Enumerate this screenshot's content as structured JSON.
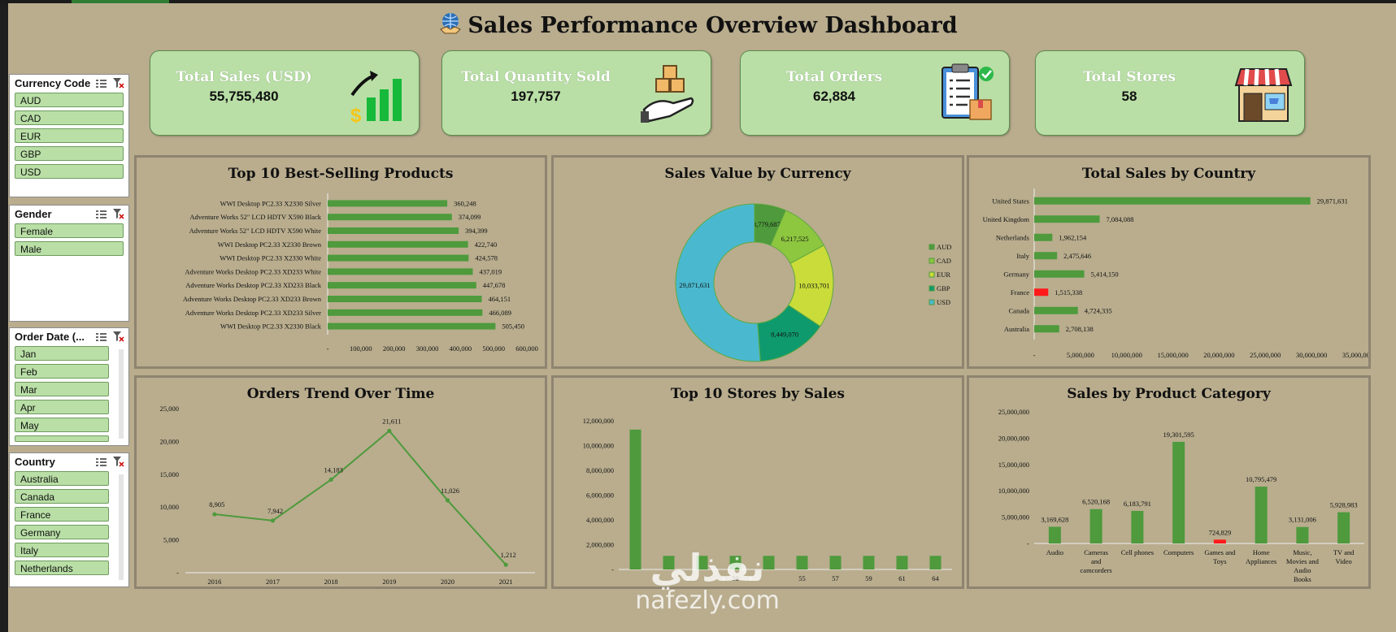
{
  "dashboard": {
    "title": "Sales Performance Overview Dashboard"
  },
  "kpis": [
    {
      "label": "Total Sales (USD)",
      "value": "55,755,480",
      "icon": "sales-growth-icon"
    },
    {
      "label": "Total Quantity Sold",
      "value": "197,757",
      "icon": "boxes-hand-icon"
    },
    {
      "label": "Total Orders",
      "value": "62,884",
      "icon": "order-clipboard-icon"
    },
    {
      "label": "Total Stores",
      "value": "58",
      "icon": "storefront-icon"
    }
  ],
  "slicers": {
    "currency": {
      "title": "Currency Code",
      "items": [
        "AUD",
        "CAD",
        "EUR",
        "GBP",
        "USD"
      ]
    },
    "gender": {
      "title": "Gender",
      "items": [
        "Female",
        "Male"
      ]
    },
    "order_date": {
      "title": "Order Date (...",
      "items": [
        "Jan",
        "Feb",
        "Mar",
        "Apr",
        "May"
      ]
    },
    "country": {
      "title": "Country",
      "items": [
        "Australia",
        "Canada",
        "France",
        "Germany",
        "Italy",
        "Netherlands"
      ]
    }
  },
  "colors": {
    "bar": "#4e9a3c",
    "highlight": "#ff1a1a",
    "kpi_bg": "#b9dfa6",
    "page_bg": "#b9ad8e"
  },
  "watermark": {
    "arabic": "نفذلي",
    "latin": "nafezly.com"
  },
  "chart_data": [
    {
      "id": "top-products",
      "type": "bar",
      "orientation": "horizontal",
      "title": "Top 10 Best-Selling Products",
      "categories": [
        "WWI Desktop PC2.33 X2330 Silver",
        "Adventure Works 52\" LCD HDTV X590 Black",
        "Adventure Works 52\" LCD HDTV X590 White",
        "WWI Desktop PC2.33 X2330 Brown",
        "WWI Desktop PC2.33 X2330 White",
        "Adventure Works Desktop PC2.33 XD233 White",
        "Adventure Works Desktop PC2.33 XD233 Black",
        "Adventure Works Desktop PC2.33 XD233 Brown",
        "Adventure Works Desktop PC2.33 XD233 Silver",
        "WWI Desktop PC2.33 X2330 Black"
      ],
      "values": [
        360248,
        374099,
        394399,
        422740,
        424578,
        437019,
        447678,
        464151,
        466089,
        505450
      ],
      "value_labels": [
        "360,248",
        "374,099",
        "394,399",
        "422,740",
        "424,578",
        "437,019",
        "447,678",
        "464,151",
        "466,089",
        "505,450"
      ],
      "xlim": [
        0,
        600000
      ],
      "ticks": [
        "-",
        "100,000",
        "200,000",
        "300,000",
        "400,000",
        "500,000",
        "600,000"
      ]
    },
    {
      "id": "currency-donut",
      "type": "pie",
      "subtype": "donut",
      "title": "Sales Value by Currency",
      "categories": [
        "AUD",
        "CAD",
        "EUR",
        "GBP",
        "USD"
      ],
      "values": [
        3779687,
        6217525,
        10033701,
        8449070,
        29871631
      ],
      "value_labels": [
        "3,779,687",
        "6,217,525",
        "10,033,701",
        "8,449,070",
        "29,871,631"
      ],
      "colors": [
        "#4e9a3c",
        "#8dc63f",
        "#c9dc3a",
        "#0f9a6e",
        "#4ab9cf"
      ],
      "legend": "right"
    },
    {
      "id": "sales-country",
      "type": "bar",
      "orientation": "horizontal",
      "title": "Total Sales by Country",
      "categories": [
        "United States",
        "United Kingdom",
        "Netherlands",
        "Italy",
        "Germany",
        "France",
        "Canada",
        "Australia"
      ],
      "values": [
        29871631,
        7084088,
        1962154,
        2475646,
        5414150,
        1515338,
        4724335,
        2708138
      ],
      "value_labels": [
        "29,871,631",
        "7,084,088",
        "1,962,154",
        "2,475,646",
        "5,414,150",
        "1,515,338",
        "4,724,335",
        "2,708,138"
      ],
      "highlight": "France",
      "xlim": [
        0,
        35000000
      ],
      "ticks": [
        "-",
        "5,000,000",
        "10,000,000",
        "15,000,000",
        "20,000,000",
        "25,000,000",
        "30,000,000",
        "35,000,000"
      ]
    },
    {
      "id": "orders-trend",
      "type": "line",
      "title": "Orders Trend Over Time",
      "x": [
        "2016",
        "2017",
        "2018",
        "2019",
        "2020",
        "2021"
      ],
      "values": [
        8905,
        7942,
        14183,
        21611,
        11026,
        1212
      ],
      "value_labels": [
        "8,905",
        "7,942",
        "14,183",
        "21,611",
        "11,026",
        "1,212"
      ],
      "ylim": [
        0,
        25000
      ],
      "yticks": [
        "25,000",
        "20,000",
        "15,000",
        "10,000",
        "5,000",
        "-"
      ]
    },
    {
      "id": "top-stores",
      "type": "bar",
      "title": "Top 10 Stores by Sales",
      "categories": [
        "",
        "",
        "",
        "50",
        "",
        "55",
        "57",
        "59",
        "61",
        "64"
      ],
      "values": [
        11300000,
        1100000,
        1100000,
        1100000,
        1100000,
        1100000,
        1100000,
        1100000,
        1100000,
        1100000
      ],
      "ylim": [
        0,
        13000000
      ],
      "yticks": [
        "12,000,000",
        "10,000,000",
        "8,000,000",
        "6,000,000",
        "4,000,000",
        "2,000,000",
        "-"
      ]
    },
    {
      "id": "product-category",
      "type": "bar",
      "title": "Sales by Product Category",
      "categories": [
        "Audio",
        "Cameras and camcorders",
        "Cell phones",
        "Computers",
        "Games and Toys",
        "Home Appliances",
        "Music, Movies and Audio Books",
        "TV and Video"
      ],
      "values": [
        3169628,
        6520168,
        6183791,
        19301595,
        724829,
        10795479,
        3131006,
        5928983
      ],
      "value_labels": [
        "3,169,628",
        "6,520,168",
        "6,183,791",
        "19,301,595",
        "724,829",
        "10,795,479",
        "3,131,006",
        "5,928,983"
      ],
      "highlight": "Games and Toys",
      "ylim": [
        0,
        25000000
      ],
      "yticks": [
        "25,000,000",
        "20,000,000",
        "15,000,000",
        "10,000,000",
        "5,000,000",
        "-"
      ]
    }
  ]
}
